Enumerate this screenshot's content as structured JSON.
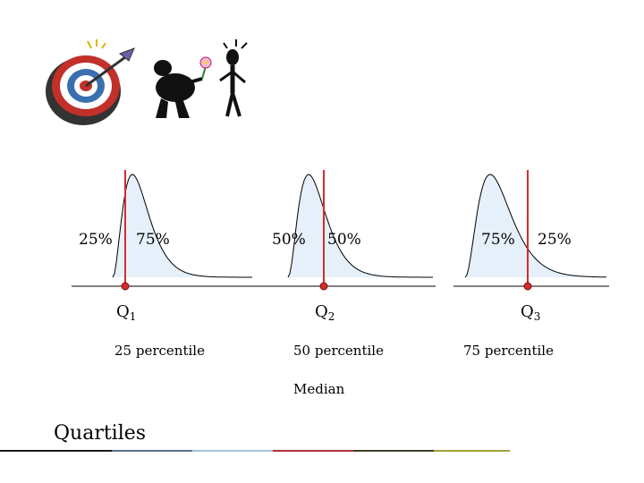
{
  "slide": {
    "title": "Quartiles",
    "median_label": "Median"
  },
  "quartiles": [
    {
      "left_pct": "25%",
      "right_pct": "75%",
      "q_letter": "Q",
      "q_sub": "1",
      "percentile": "25 percentile"
    },
    {
      "left_pct": "50%",
      "right_pct": "50%",
      "q_letter": "Q",
      "q_sub": "2",
      "percentile": "50 percentile"
    },
    {
      "left_pct": "75%",
      "right_pct": "25%",
      "q_letter": "Q",
      "q_sub": "3",
      "percentile": "75 percentile"
    }
  ],
  "colors": {
    "divider_line": "#d62b2b",
    "curve_fill": "#e6f0fa",
    "footer": [
      "#1a1a1a",
      "#5a6f8a",
      "#a9c1d9",
      "#b03333",
      "#3d3f2a",
      "#a3a33a"
    ]
  },
  "icons": [
    "dartboard-clipart",
    "man-with-flower-clipart"
  ]
}
